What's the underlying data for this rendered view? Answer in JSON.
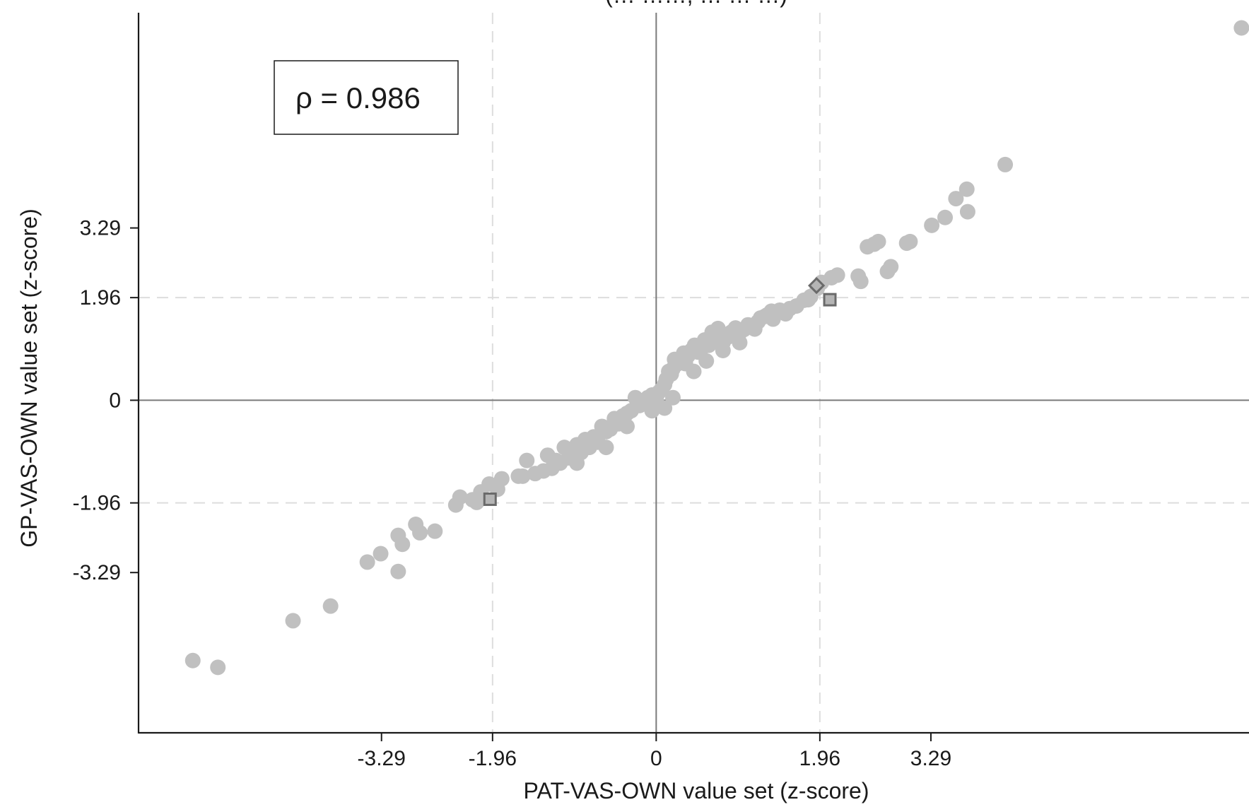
{
  "chart_data": {
    "type": "scatter",
    "title": "(… ……, … … …)",
    "xlabel": "PAT-VAS-OWN value set (z-score)",
    "ylabel": "GP-VAS-OWN value set (z-score)",
    "annotation": "ρ = 0.986",
    "xlim": [
      -6.2,
      7.1
    ],
    "ylim": [
      -6.35,
      7.4
    ],
    "xticks": [
      -3.29,
      -1.96,
      0,
      1.96,
      3.29
    ],
    "xtick_labels": [
      "-3.29",
      "-1.96",
      "0",
      "1.96",
      "3.29"
    ],
    "yticks": [
      3.29,
      1.96,
      0,
      -1.96,
      -3.29
    ],
    "ytick_labels": [
      "3.29",
      "1.96",
      "0",
      "-1.96",
      "-3.29"
    ],
    "reference_lines": {
      "solid": [
        0
      ],
      "dashed": [
        -1.96,
        1.96
      ]
    },
    "grid": false,
    "colors": {
      "points": "#c0c0c0",
      "highlight_fill": "#b4b4b4",
      "highlight_edge": "#6a6a6a",
      "refline": "#7a7a7a",
      "dashed": "#dddddd"
    },
    "series": [
      {
        "marker": "circle",
        "points": [
          [
            7.01,
            7.11
          ],
          [
            4.18,
            4.5
          ],
          [
            3.72,
            4.03
          ],
          [
            3.59,
            3.85
          ],
          [
            3.73,
            3.6
          ],
          [
            3.46,
            3.49
          ],
          [
            3.3,
            3.34
          ],
          [
            3.04,
            3.03
          ],
          [
            3.0,
            3.0
          ],
          [
            2.66,
            3.03
          ],
          [
            2.61,
            2.98
          ],
          [
            2.53,
            2.93
          ],
          [
            2.81,
            2.55
          ],
          [
            2.77,
            2.46
          ],
          [
            2.42,
            2.37
          ],
          [
            2.45,
            2.27
          ],
          [
            2.17,
            2.39
          ],
          [
            2.1,
            2.34
          ],
          [
            1.98,
            2.25
          ],
          [
            1.93,
            2.14
          ],
          [
            1.85,
            1.98
          ],
          [
            1.82,
            1.92
          ],
          [
            1.77,
            1.91
          ],
          [
            1.68,
            1.8
          ],
          [
            1.6,
            1.75
          ],
          [
            1.55,
            1.65
          ],
          [
            1.48,
            1.72
          ],
          [
            1.43,
            1.65
          ],
          [
            1.38,
            1.7
          ],
          [
            1.33,
            1.63
          ],
          [
            1.3,
            1.6
          ],
          [
            1.25,
            1.57
          ],
          [
            1.22,
            1.5
          ],
          [
            1.18,
            1.36
          ],
          [
            1.1,
            1.44
          ],
          [
            1.05,
            1.35
          ],
          [
            0.99,
            1.26
          ],
          [
            0.95,
            1.38
          ],
          [
            0.9,
            1.3
          ],
          [
            0.85,
            1.2
          ],
          [
            0.8,
            1.1
          ],
          [
            0.74,
            1.37
          ],
          [
            0.7,
            1.2
          ],
          [
            0.67,
            1.3
          ],
          [
            0.63,
            1.05
          ],
          [
            0.58,
            1.15
          ],
          [
            0.55,
            1.0
          ],
          [
            0.5,
            0.92
          ],
          [
            0.46,
            1.05
          ],
          [
            0.42,
            0.95
          ],
          [
            0.38,
            0.85
          ],
          [
            0.33,
            0.9
          ],
          [
            0.3,
            0.8
          ],
          [
            0.26,
            0.7
          ],
          [
            0.22,
            0.78
          ],
          [
            0.2,
            0.6
          ],
          [
            0.18,
            0.5
          ],
          [
            0.15,
            0.55
          ],
          [
            0.12,
            0.4
          ],
          [
            0.1,
            0.3
          ],
          [
            0.06,
            0.2
          ],
          [
            0.03,
            0.15
          ],
          [
            0.0,
            0.0
          ],
          [
            -0.05,
            0.1
          ],
          [
            -0.1,
            0.05
          ],
          [
            -0.15,
            -0.05
          ],
          [
            -0.2,
            -0.1
          ],
          [
            -0.25,
            0.05
          ],
          [
            -0.3,
            -0.2
          ],
          [
            -0.35,
            -0.25
          ],
          [
            -0.4,
            -0.3
          ],
          [
            -0.45,
            -0.45
          ],
          [
            -0.5,
            -0.35
          ],
          [
            -0.55,
            -0.55
          ],
          [
            -0.6,
            -0.6
          ],
          [
            -0.65,
            -0.5
          ],
          [
            -0.7,
            -0.8
          ],
          [
            -0.75,
            -0.7
          ],
          [
            -0.8,
            -0.9
          ],
          [
            -0.85,
            -0.75
          ],
          [
            -0.9,
            -1.0
          ],
          [
            -0.95,
            -0.85
          ],
          [
            -1.0,
            -1.05
          ],
          [
            -1.05,
            -1.1
          ],
          [
            -1.1,
            -0.9
          ],
          [
            -1.15,
            -1.2
          ],
          [
            -1.2,
            -1.15
          ],
          [
            -1.25,
            -1.3
          ],
          [
            -1.3,
            -1.05
          ],
          [
            -1.35,
            -1.35
          ],
          [
            -1.45,
            -1.4
          ],
          [
            -1.55,
            -1.15
          ],
          [
            -1.65,
            -1.45
          ],
          [
            -1.85,
            -1.5
          ],
          [
            -2.0,
            -1.6
          ],
          [
            -1.9,
            -1.7
          ],
          [
            -2.1,
            -1.75
          ],
          [
            -2.2,
            -1.9
          ],
          [
            -2.35,
            -1.85
          ],
          [
            -2.4,
            -2.0
          ],
          [
            -2.65,
            -2.5
          ],
          [
            -2.83,
            -2.53
          ],
          [
            -3.3,
            -2.93
          ],
          [
            -3.09,
            -2.58
          ],
          [
            -2.88,
            -2.37
          ],
          [
            -3.09,
            -3.27
          ],
          [
            -3.46,
            -3.09
          ],
          [
            -3.04,
            -2.75
          ],
          [
            -3.9,
            -3.93
          ],
          [
            -4.35,
            -4.21
          ],
          [
            -5.25,
            -5.1
          ],
          [
            -5.55,
            -4.97
          ],
          [
            0.2,
            0.05
          ],
          [
            0.35,
            0.7
          ],
          [
            0.6,
            0.75
          ],
          [
            0.45,
            0.55
          ],
          [
            -0.05,
            -0.2
          ],
          [
            0.1,
            -0.15
          ],
          [
            1.0,
            1.1
          ],
          [
            1.4,
            1.55
          ],
          [
            0.8,
            0.95
          ],
          [
            -0.6,
            -0.9
          ],
          [
            -0.95,
            -1.2
          ],
          [
            -1.6,
            -1.45
          ],
          [
            -0.35,
            -0.5
          ],
          [
            -2.15,
            -1.95
          ]
        ]
      },
      {
        "marker": "square",
        "points": [
          [
            -1.99,
            -1.89
          ],
          [
            2.08,
            1.92
          ]
        ]
      },
      {
        "marker": "diamond",
        "points": [
          [
            1.92,
            2.19
          ]
        ]
      }
    ]
  }
}
